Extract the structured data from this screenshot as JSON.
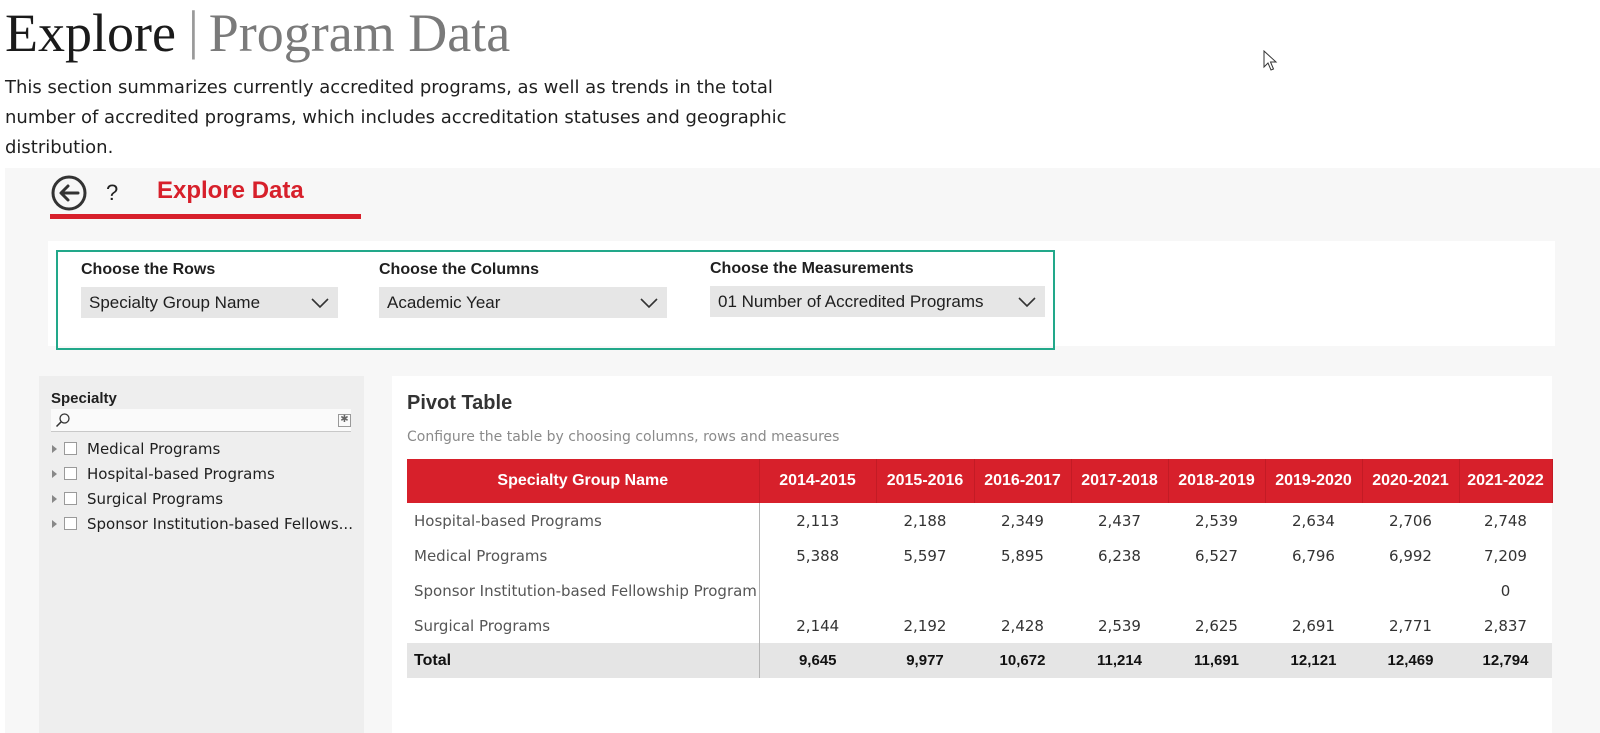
{
  "header": {
    "title_main": "Explore",
    "title_separator": "|",
    "title_sub": "Program Data",
    "description": "This section summarizes currently accredited programs, as well as trends in the total number of accredited programs, which includes accreditation statuses and geographic distribution."
  },
  "report": {
    "help_label": "?",
    "title": "Explore Data",
    "accent_color": "#d7202b",
    "selectors": [
      {
        "label": "Choose the Rows",
        "value": "Specialty Group Name"
      },
      {
        "label": "Choose the Columns",
        "value": "Academic Year"
      },
      {
        "label": "Choose the Measurements",
        "value": "01 Number of Accredited Programs"
      }
    ],
    "slicer": {
      "title": "Specialty",
      "search_placeholder": "",
      "items": [
        "Medical Programs",
        "Hospital-based Programs",
        "Surgical Programs",
        "Sponsor Institution-based Fellows..."
      ]
    },
    "pivot": {
      "title": "Pivot Table",
      "subtitle": "Configure the table by choosing columns, rows and measures",
      "columns": [
        "Specialty Group Name",
        "2014-2015",
        "2015-2016",
        "2016-2017",
        "2017-2018",
        "2018-2019",
        "2019-2020",
        "2020-2021",
        "2021-2022"
      ],
      "rows": [
        {
          "name": "Hospital-based Programs",
          "values": [
            "2,113",
            "2,188",
            "2,349",
            "2,437",
            "2,539",
            "2,634",
            "2,706",
            "2,748"
          ]
        },
        {
          "name": "Medical Programs",
          "values": [
            "5,388",
            "5,597",
            "5,895",
            "6,238",
            "6,527",
            "6,796",
            "6,992",
            "7,209"
          ]
        },
        {
          "name": "Sponsor Institution-based Fellowship Program",
          "values": [
            "",
            "",
            "",
            "",
            "",
            "",
            "",
            "0"
          ]
        },
        {
          "name": "Surgical Programs",
          "values": [
            "2,144",
            "2,192",
            "2,428",
            "2,539",
            "2,625",
            "2,691",
            "2,771",
            "2,837"
          ]
        }
      ],
      "total": {
        "name": "Total",
        "values": [
          "9,645",
          "9,977",
          "10,672",
          "11,214",
          "11,691",
          "12,121",
          "12,469",
          "12,794"
        ]
      }
    }
  }
}
